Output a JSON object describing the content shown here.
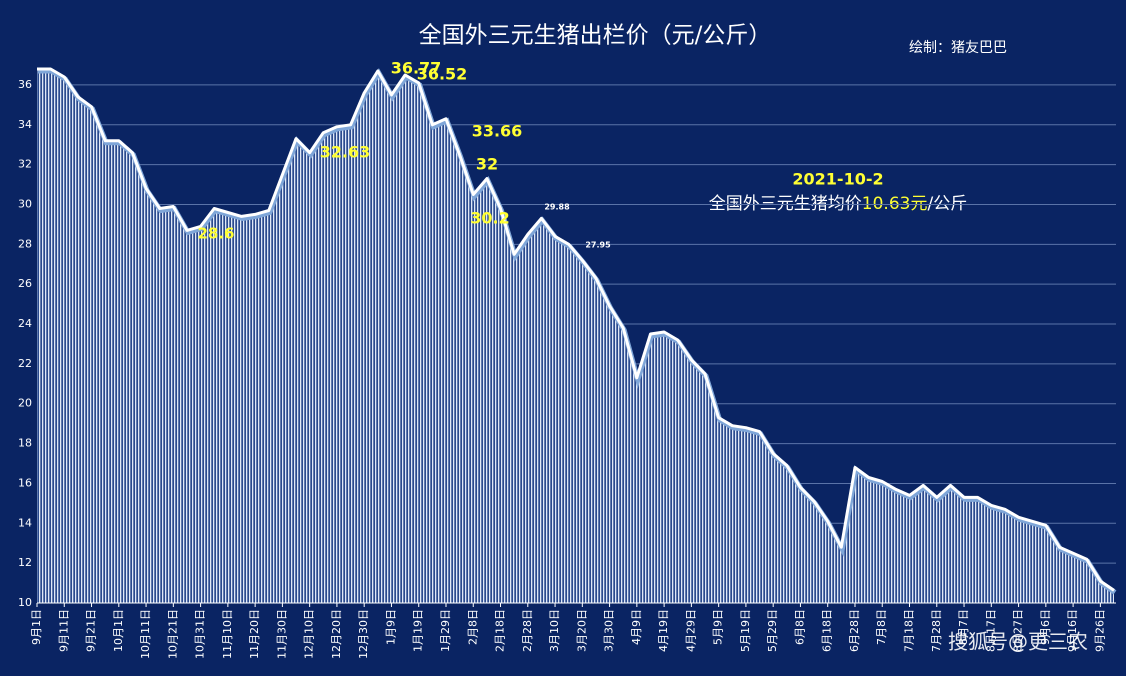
{
  "chart_data": {
    "type": "area",
    "title": "全国外三元生猪出栏价（元/公斤）",
    "credit": "绘制：猪友巴巴",
    "watermark": "搜狐号@更三农",
    "note": {
      "date": "2021-10-2",
      "prefix": "全国外三元生猪均价",
      "highlight": "10.63元",
      "suffix": "/公斤"
    },
    "annotations": [
      "36.77",
      "36.52",
      "33.66",
      "32.63",
      "32",
      "30.2",
      "29.88",
      "27.95",
      "28.6"
    ],
    "categories": [
      "9月1日",
      null,
      "9月11日",
      null,
      "9月21日",
      null,
      "10月1日",
      null,
      "10月11日",
      null,
      "10月21日",
      null,
      "10月31日",
      null,
      "11月10日",
      null,
      "11月20日",
      null,
      "11月30日",
      null,
      "12月10日",
      null,
      "12月20日",
      null,
      "12月30日",
      null,
      "1月9日",
      null,
      "1月19日",
      null,
      "1月29日",
      null,
      "2月8日",
      null,
      "2月18日",
      null,
      "2月28日",
      null,
      "3月10日",
      null,
      "3月20日",
      null,
      "3月30日",
      null,
      "4月9日",
      null,
      "4月19日",
      null,
      "4月29日",
      null,
      "5月9日",
      null,
      "5月19日",
      null,
      "5月29日",
      null,
      "6月8日",
      null,
      "6月18日",
      null,
      "6月28日",
      null,
      "7月8日",
      null,
      "7月18日",
      null,
      "7月28日",
      null,
      "8月7日",
      null,
      "8月17日",
      null,
      "8月27日",
      null,
      "9月6日",
      null,
      "9月16日",
      null,
      "9月26日",
      null
    ],
    "values": [
      36.8,
      36.8,
      36.4,
      35.4,
      34.9,
      33.2,
      33.2,
      32.6,
      30.8,
      29.8,
      29.9,
      28.7,
      28.9,
      29.8,
      29.6,
      29.4,
      29.5,
      29.7,
      31.5,
      33.3,
      32.6,
      33.6,
      33.9,
      34.0,
      35.6,
      36.7,
      35.5,
      36.5,
      36.1,
      34.0,
      34.3,
      32.5,
      30.5,
      31.3,
      29.8,
      27.5,
      28.5,
      29.3,
      28.4,
      28.0,
      27.2,
      26.3,
      24.9,
      23.8,
      21.3,
      23.5,
      23.6,
      23.2,
      22.2,
      21.5,
      19.3,
      18.9,
      18.8,
      18.6,
      17.5,
      16.9,
      15.8,
      15.1,
      14.1,
      12.8,
      16.8,
      16.3,
      16.1,
      15.7,
      15.4,
      15.9,
      15.3,
      15.9,
      15.3,
      15.3,
      14.9,
      14.7,
      14.3,
      14.1,
      13.9,
      12.8,
      12.5,
      12.2,
      11.1,
      10.63
    ],
    "color": "#ffffff",
    "ylim": [
      10,
      37
    ],
    "yticks": [
      10,
      12,
      14,
      16,
      18,
      20,
      22,
      24,
      26,
      28,
      30,
      32,
      34,
      36
    ],
    "grid": true
  }
}
